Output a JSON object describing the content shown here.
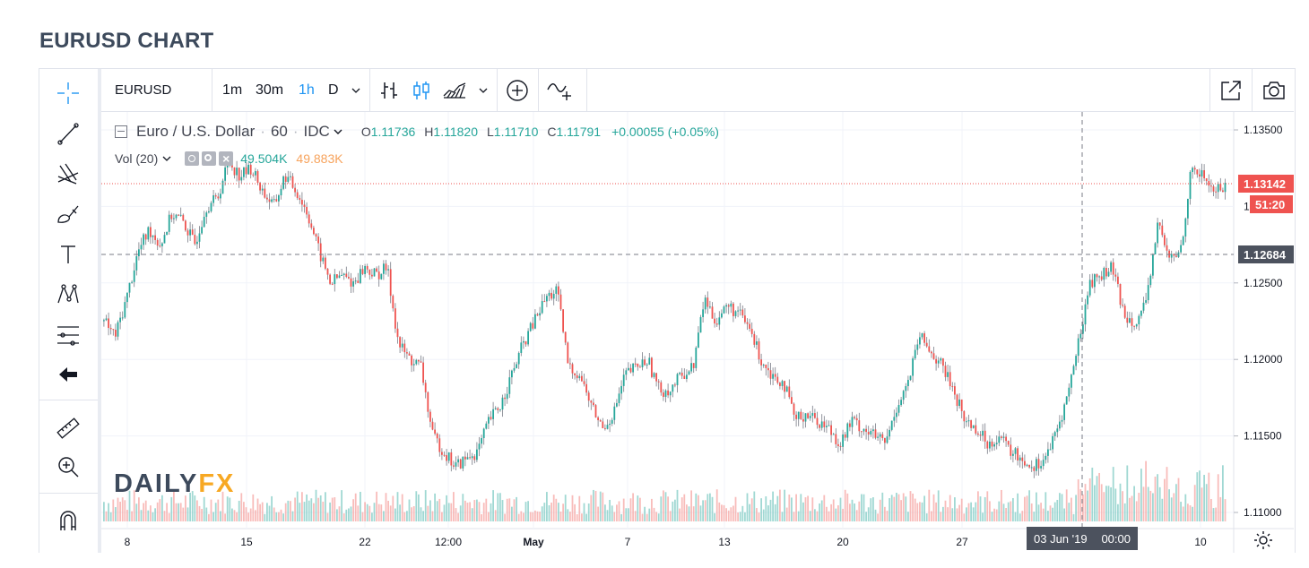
{
  "page_title": "EURUSD CHART",
  "toolbar": {
    "symbol": "EURUSD",
    "intervals": [
      "1m",
      "30m",
      "1h",
      "D"
    ],
    "active_interval": "1h"
  },
  "legend": {
    "symbol_desc": "Euro / U.S. Dollar",
    "interval": "60",
    "source": "IDC",
    "open_label": "O",
    "open": "1.11736",
    "high_label": "H",
    "high": "1.11820",
    "low_label": "L",
    "low": "1.11710",
    "close_label": "C",
    "close": "1.11791",
    "change": "+0.00055 (+0.05%)"
  },
  "volume": {
    "label": "Vol (20)",
    "value1": "49.504K",
    "value2": "49.883K",
    "color1": "#26a69a",
    "color2": "#f7a35c"
  },
  "price_badges": {
    "last": "1.13142",
    "countdown": "51:20",
    "crosshair": "1.12684",
    "last_color": "#ef5350",
    "crosshair_color": "#4c525e"
  },
  "crosshair_date": "03 Jun '19",
  "crosshair_time": "00:00",
  "logo": {
    "part1": "DAILY",
    "part2": "FX"
  },
  "colors": {
    "up": "#26a69a",
    "down": "#ef5350",
    "accent": "#2196f3"
  },
  "chart_data": {
    "type": "line",
    "title": "",
    "price_axis": {
      "ticks": [
        "1.13500",
        "1.12500",
        "1.12000",
        "1.11500",
        "1.11000"
      ],
      "range": [
        1.1095,
        1.1355
      ]
    },
    "x_ticks": [
      "8",
      "15",
      "22",
      "12:00",
      "May",
      "7",
      "13",
      "20",
      "27",
      "10"
    ],
    "series": [
      {
        "name": "",
        "values": [
          1.1225,
          1.1215,
          1.124,
          1.127,
          1.1285,
          1.1275,
          1.1295,
          1.129,
          1.1275,
          1.13,
          1.1305,
          1.133,
          1.132,
          1.1325,
          1.131,
          1.13,
          1.132,
          1.131,
          1.1295,
          1.127,
          1.125,
          1.1255,
          1.125,
          1.126,
          1.1255,
          1.126,
          1.121,
          1.12,
          1.1195,
          1.115,
          1.114,
          1.113,
          1.1135,
          1.114,
          1.116,
          1.117,
          1.119,
          1.121,
          1.1225,
          1.124,
          1.1245,
          1.1195,
          1.119,
          1.117,
          1.1155,
          1.1165,
          1.119,
          1.1195,
          1.12,
          1.118,
          1.118,
          1.119,
          1.1195,
          1.124,
          1.1225,
          1.1235,
          1.123,
          1.122,
          1.12,
          1.119,
          1.1185,
          1.116,
          1.1165,
          1.116,
          1.1155,
          1.1145,
          1.116,
          1.1155,
          1.115,
          1.1145,
          1.117,
          1.1185,
          1.1215,
          1.1205,
          1.1195,
          1.118,
          1.116,
          1.1155,
          1.1145,
          1.115,
          1.114,
          1.1135,
          1.113,
          1.1135,
          1.115,
          1.1175,
          1.121,
          1.125,
          1.1255,
          1.126,
          1.123,
          1.1225,
          1.1235,
          1.129,
          1.1265,
          1.127,
          1.1325,
          1.132,
          1.131,
          1.1314
        ]
      }
    ]
  }
}
